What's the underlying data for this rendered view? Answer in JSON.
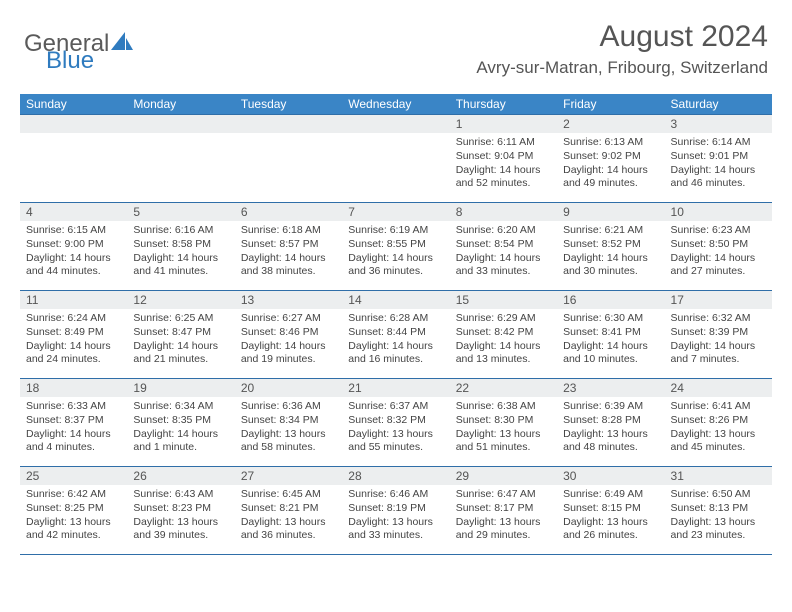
{
  "logo": {
    "text1": "General",
    "text2": "Blue",
    "color_general": "#5a5a5a",
    "color_blue": "#2f7bbf",
    "icon_color": "#2f7bbf"
  },
  "title": "August 2024",
  "location": "Avry-sur-Matran, Fribourg, Switzerland",
  "header_bg": "#3a85c6",
  "header_text": "#ffffff",
  "daynum_bg": "#eceeef",
  "border_color": "#2f6ea8",
  "text_color": "#444444",
  "weekdays": [
    "Sunday",
    "Monday",
    "Tuesday",
    "Wednesday",
    "Thursday",
    "Friday",
    "Saturday"
  ],
  "font_title_pt": 30,
  "font_location_pt": 17,
  "font_weekday_pt": 12,
  "font_daynum_pt": 12,
  "font_details_pt": 10.5,
  "first_weekday_index": 4,
  "days": [
    {
      "n": 1,
      "sunrise": "6:11 AM",
      "sunset": "9:04 PM",
      "daylight": "14 hours and 52 minutes."
    },
    {
      "n": 2,
      "sunrise": "6:13 AM",
      "sunset": "9:02 PM",
      "daylight": "14 hours and 49 minutes."
    },
    {
      "n": 3,
      "sunrise": "6:14 AM",
      "sunset": "9:01 PM",
      "daylight": "14 hours and 46 minutes."
    },
    {
      "n": 4,
      "sunrise": "6:15 AM",
      "sunset": "9:00 PM",
      "daylight": "14 hours and 44 minutes."
    },
    {
      "n": 5,
      "sunrise": "6:16 AM",
      "sunset": "8:58 PM",
      "daylight": "14 hours and 41 minutes."
    },
    {
      "n": 6,
      "sunrise": "6:18 AM",
      "sunset": "8:57 PM",
      "daylight": "14 hours and 38 minutes."
    },
    {
      "n": 7,
      "sunrise": "6:19 AM",
      "sunset": "8:55 PM",
      "daylight": "14 hours and 36 minutes."
    },
    {
      "n": 8,
      "sunrise": "6:20 AM",
      "sunset": "8:54 PM",
      "daylight": "14 hours and 33 minutes."
    },
    {
      "n": 9,
      "sunrise": "6:21 AM",
      "sunset": "8:52 PM",
      "daylight": "14 hours and 30 minutes."
    },
    {
      "n": 10,
      "sunrise": "6:23 AM",
      "sunset": "8:50 PM",
      "daylight": "14 hours and 27 minutes."
    },
    {
      "n": 11,
      "sunrise": "6:24 AM",
      "sunset": "8:49 PM",
      "daylight": "14 hours and 24 minutes."
    },
    {
      "n": 12,
      "sunrise": "6:25 AM",
      "sunset": "8:47 PM",
      "daylight": "14 hours and 21 minutes."
    },
    {
      "n": 13,
      "sunrise": "6:27 AM",
      "sunset": "8:46 PM",
      "daylight": "14 hours and 19 minutes."
    },
    {
      "n": 14,
      "sunrise": "6:28 AM",
      "sunset": "8:44 PM",
      "daylight": "14 hours and 16 minutes."
    },
    {
      "n": 15,
      "sunrise": "6:29 AM",
      "sunset": "8:42 PM",
      "daylight": "14 hours and 13 minutes."
    },
    {
      "n": 16,
      "sunrise": "6:30 AM",
      "sunset": "8:41 PM",
      "daylight": "14 hours and 10 minutes."
    },
    {
      "n": 17,
      "sunrise": "6:32 AM",
      "sunset": "8:39 PM",
      "daylight": "14 hours and 7 minutes."
    },
    {
      "n": 18,
      "sunrise": "6:33 AM",
      "sunset": "8:37 PM",
      "daylight": "14 hours and 4 minutes."
    },
    {
      "n": 19,
      "sunrise": "6:34 AM",
      "sunset": "8:35 PM",
      "daylight": "14 hours and 1 minute."
    },
    {
      "n": 20,
      "sunrise": "6:36 AM",
      "sunset": "8:34 PM",
      "daylight": "13 hours and 58 minutes."
    },
    {
      "n": 21,
      "sunrise": "6:37 AM",
      "sunset": "8:32 PM",
      "daylight": "13 hours and 55 minutes."
    },
    {
      "n": 22,
      "sunrise": "6:38 AM",
      "sunset": "8:30 PM",
      "daylight": "13 hours and 51 minutes."
    },
    {
      "n": 23,
      "sunrise": "6:39 AM",
      "sunset": "8:28 PM",
      "daylight": "13 hours and 48 minutes."
    },
    {
      "n": 24,
      "sunrise": "6:41 AM",
      "sunset": "8:26 PM",
      "daylight": "13 hours and 45 minutes."
    },
    {
      "n": 25,
      "sunrise": "6:42 AM",
      "sunset": "8:25 PM",
      "daylight": "13 hours and 42 minutes."
    },
    {
      "n": 26,
      "sunrise": "6:43 AM",
      "sunset": "8:23 PM",
      "daylight": "13 hours and 39 minutes."
    },
    {
      "n": 27,
      "sunrise": "6:45 AM",
      "sunset": "8:21 PM",
      "daylight": "13 hours and 36 minutes."
    },
    {
      "n": 28,
      "sunrise": "6:46 AM",
      "sunset": "8:19 PM",
      "daylight": "13 hours and 33 minutes."
    },
    {
      "n": 29,
      "sunrise": "6:47 AM",
      "sunset": "8:17 PM",
      "daylight": "13 hours and 29 minutes."
    },
    {
      "n": 30,
      "sunrise": "6:49 AM",
      "sunset": "8:15 PM",
      "daylight": "13 hours and 26 minutes."
    },
    {
      "n": 31,
      "sunrise": "6:50 AM",
      "sunset": "8:13 PM",
      "daylight": "13 hours and 23 minutes."
    }
  ]
}
